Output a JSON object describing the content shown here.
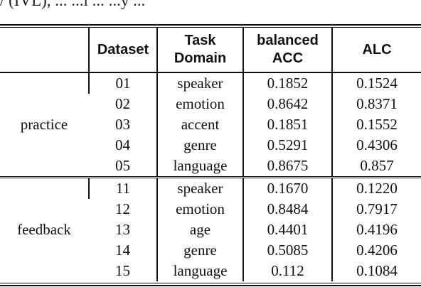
{
  "top_text": "/ (IVL), ... ...l ... ...y ...",
  "table": {
    "headers": {
      "dataset": "Dataset",
      "task_line1": "Task",
      "task_line2": "Domain",
      "bacc_line1": "balanced",
      "bacc_line2": "ACC",
      "alc": "ALC"
    },
    "groups": [
      {
        "label": "practice",
        "rows": [
          {
            "dataset": "01",
            "domain": "speaker",
            "bacc": "0.1852",
            "alc": "0.1524"
          },
          {
            "dataset": "02",
            "domain": "emotion",
            "bacc": "0.8642",
            "alc": "0.8371"
          },
          {
            "dataset": "03",
            "domain": "accent",
            "bacc": "0.1851",
            "alc": "0.1552"
          },
          {
            "dataset": "04",
            "domain": "genre",
            "bacc": "0.5291",
            "alc": "0.4306"
          },
          {
            "dataset": "05",
            "domain": "language",
            "bacc": "0.8675",
            "alc": "0.857"
          }
        ]
      },
      {
        "label": "feedback",
        "rows": [
          {
            "dataset": "11",
            "domain": "speaker",
            "bacc": "0.1670",
            "alc": "0.1220"
          },
          {
            "dataset": "12",
            "domain": "emotion",
            "bacc": "0.8484",
            "alc": "0.7917"
          },
          {
            "dataset": "13",
            "domain": "age",
            "bacc": "0.4401",
            "alc": "0.4196"
          },
          {
            "dataset": "14",
            "domain": "genre",
            "bacc": "0.5085",
            "alc": "0.4206"
          },
          {
            "dataset": "15",
            "domain": "language",
            "bacc": "0.112",
            "alc": "0.1084"
          }
        ]
      }
    ]
  }
}
